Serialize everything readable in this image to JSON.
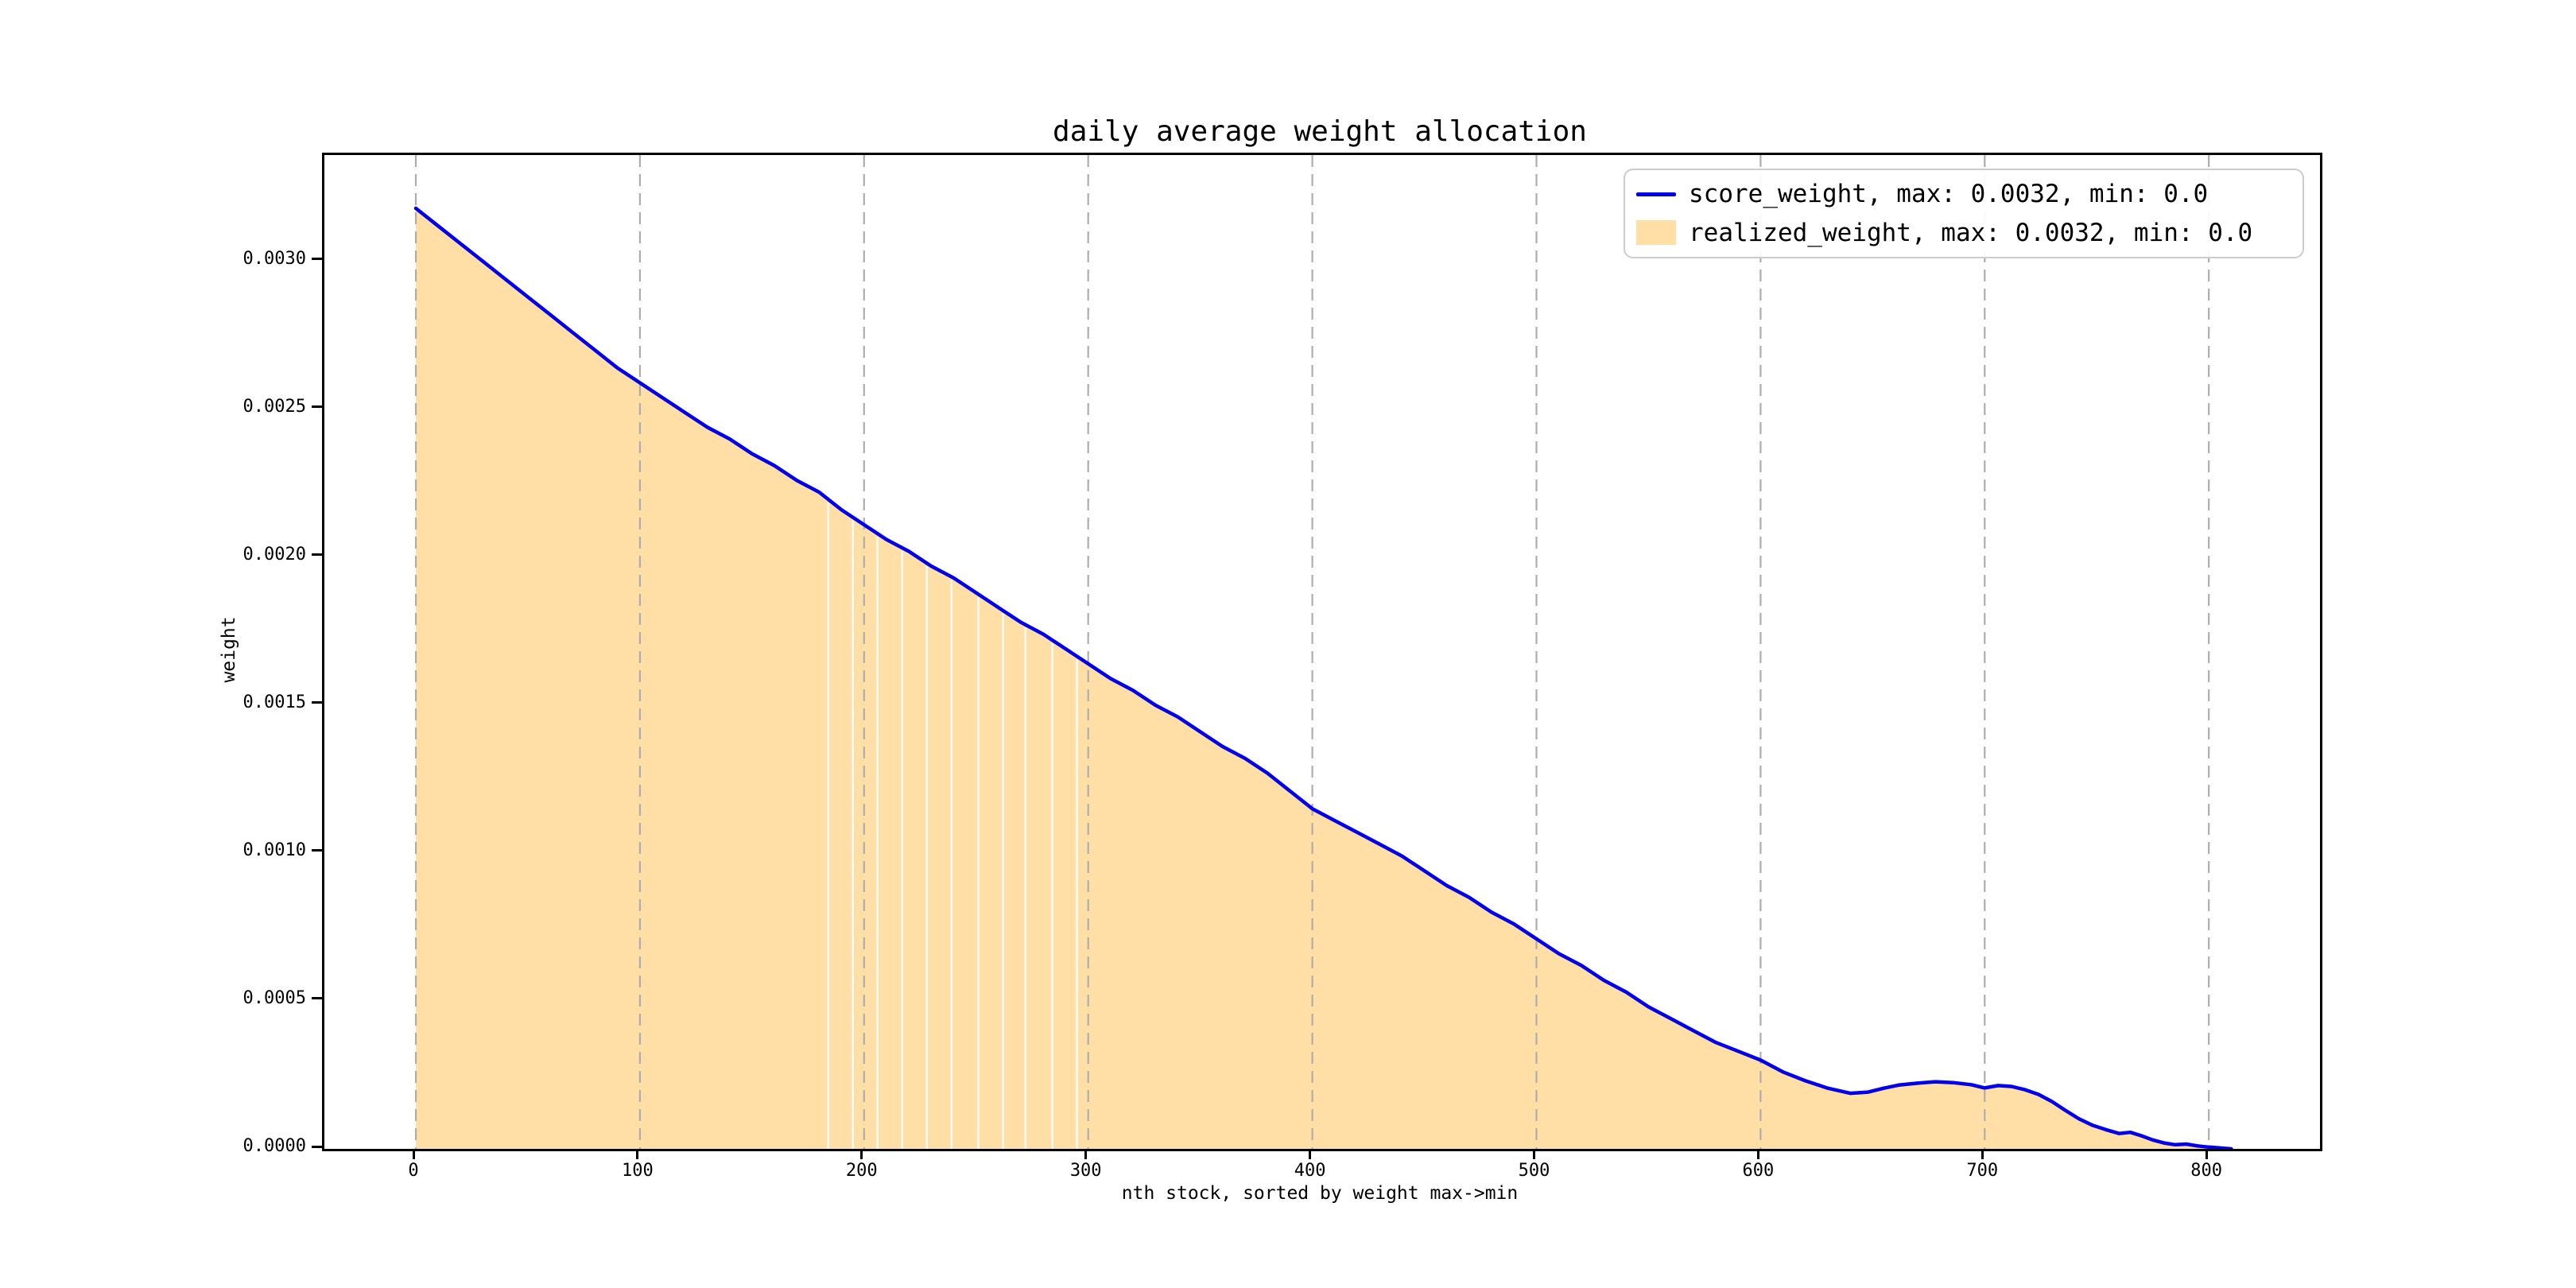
{
  "chart_data": {
    "type": "area",
    "title": "daily average weight allocation",
    "xlabel": "nth stock, sorted by weight max->min",
    "ylabel": "weight",
    "xlim": [
      -40.8,
      849.6
    ],
    "ylim": [
      0,
      0.00336
    ],
    "xticks": [
      0,
      100,
      200,
      300,
      400,
      500,
      600,
      700,
      800
    ],
    "yticks": [
      {
        "label": "0.0000",
        "value": 0.0
      },
      {
        "label": "0.0005",
        "value": 0.0005
      },
      {
        "label": "0.0010",
        "value": 0.001
      },
      {
        "label": "0.0015",
        "value": 0.0015
      },
      {
        "label": "0.0020",
        "value": 0.002
      },
      {
        "label": "0.0025",
        "value": 0.0025
      },
      {
        "label": "0.0030",
        "value": 0.003
      }
    ],
    "grid": "vertical dashed gridlines at every x tick, no horizontal gridlines",
    "grid_color": "#adadad",
    "legend_position": "upper right",
    "series": [
      {
        "name": "score_weight, max: 0.0032, min: 0.0",
        "type": "line",
        "color": "#0000ee"
      },
      {
        "name": "realized_weight, max: 0.0032, min: 0.0",
        "type": "area",
        "color": "#ffdfa6"
      }
    ],
    "points_note": "both series follow the same curve; realized_weight is the filled area under the score_weight line",
    "points": [
      [
        0,
        0.00318
      ],
      [
        10,
        0.00312
      ],
      [
        20,
        0.00306
      ],
      [
        30,
        0.003
      ],
      [
        40,
        0.00294
      ],
      [
        50,
        0.00288
      ],
      [
        60,
        0.00282
      ],
      [
        70,
        0.00276
      ],
      [
        80,
        0.0027
      ],
      [
        90,
        0.00264
      ],
      [
        100,
        0.00259
      ],
      [
        110,
        0.00254
      ],
      [
        120,
        0.00249
      ],
      [
        130,
        0.00244
      ],
      [
        140,
        0.0024
      ],
      [
        150,
        0.00235
      ],
      [
        160,
        0.00231
      ],
      [
        170,
        0.00226
      ],
      [
        180,
        0.00222
      ],
      [
        190,
        0.00216
      ],
      [
        200,
        0.00211
      ],
      [
        210,
        0.00206
      ],
      [
        220,
        0.00202
      ],
      [
        230,
        0.00197
      ],
      [
        240,
        0.00193
      ],
      [
        250,
        0.00188
      ],
      [
        260,
        0.00183
      ],
      [
        270,
        0.00178
      ],
      [
        280,
        0.00174
      ],
      [
        290,
        0.00169
      ],
      [
        300,
        0.00164
      ],
      [
        310,
        0.00159
      ],
      [
        320,
        0.00155
      ],
      [
        330,
        0.0015
      ],
      [
        340,
        0.00146
      ],
      [
        350,
        0.00141
      ],
      [
        360,
        0.00136
      ],
      [
        370,
        0.00132
      ],
      [
        380,
        0.00127
      ],
      [
        390,
        0.00121
      ],
      [
        400,
        0.00115
      ],
      [
        410,
        0.00111
      ],
      [
        420,
        0.00107
      ],
      [
        430,
        0.00103
      ],
      [
        440,
        0.00099
      ],
      [
        450,
        0.00094
      ],
      [
        460,
        0.00089
      ],
      [
        470,
        0.00085
      ],
      [
        480,
        0.0008
      ],
      [
        490,
        0.00076
      ],
      [
        500,
        0.00071
      ],
      [
        510,
        0.00066
      ],
      [
        520,
        0.00062
      ],
      [
        530,
        0.00057
      ],
      [
        540,
        0.00053
      ],
      [
        550,
        0.00048
      ],
      [
        560,
        0.00044
      ],
      [
        570,
        0.0004
      ],
      [
        580,
        0.00036
      ],
      [
        590,
        0.00033
      ],
      [
        600,
        0.0003
      ],
      [
        610,
        0.00026
      ],
      [
        620,
        0.00023
      ],
      [
        630,
        0.000205
      ],
      [
        640,
        0.000188
      ],
      [
        648,
        0.000192
      ],
      [
        655,
        0.000205
      ],
      [
        662,
        0.000216
      ],
      [
        670,
        0.000222
      ],
      [
        678,
        0.000227
      ],
      [
        686,
        0.000224
      ],
      [
        694,
        0.000217
      ],
      [
        700,
        0.000206
      ],
      [
        706,
        0.000214
      ],
      [
        712,
        0.000211
      ],
      [
        718,
        0.0002
      ],
      [
        724,
        0.000184
      ],
      [
        730,
        0.00016
      ],
      [
        736,
        0.00013
      ],
      [
        742,
        0.000102
      ],
      [
        748,
        8e-05
      ],
      [
        754,
        6.5e-05
      ],
      [
        760,
        5.2e-05
      ],
      [
        765,
        5.6e-05
      ],
      [
        770,
        4.4e-05
      ],
      [
        775,
        3e-05
      ],
      [
        780,
        2e-05
      ],
      [
        785,
        1.4e-05
      ],
      [
        790,
        1.6e-05
      ],
      [
        795,
        1e-05
      ],
      [
        800,
        6e-06
      ],
      [
        805,
        3e-06
      ],
      [
        810,
        0.0
      ]
    ],
    "fill_gap_stripes_x": [
      184,
      195,
      206,
      217,
      228,
      239,
      251,
      262,
      272,
      284,
      295
    ],
    "stripe_color": "#ffffff",
    "line_width": 4.5
  },
  "legend": {
    "items": [
      {
        "label": "score_weight, max: 0.0032, min: 0.0"
      },
      {
        "label": "realized_weight, max: 0.0032, min: 0.0"
      }
    ]
  }
}
